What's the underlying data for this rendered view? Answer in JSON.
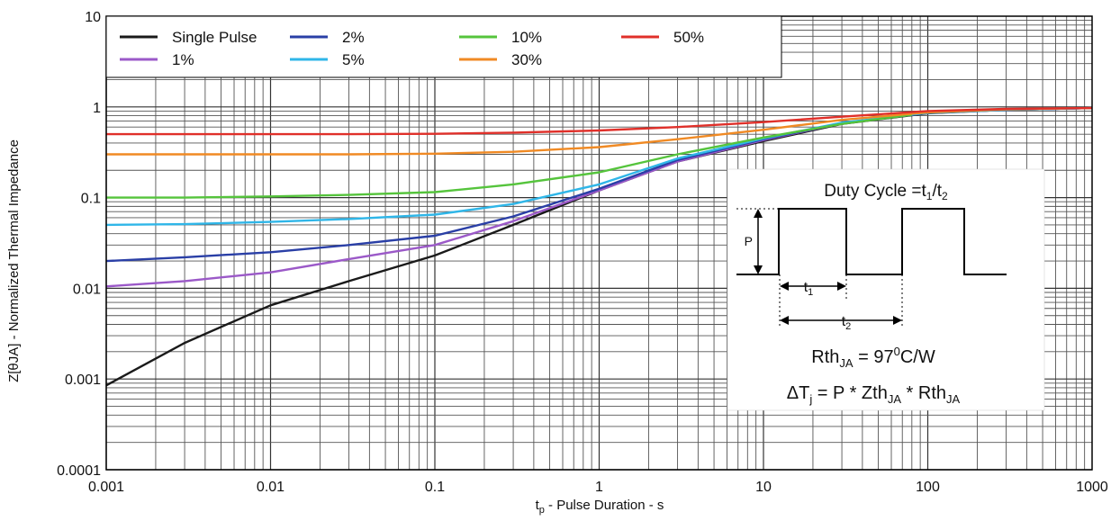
{
  "chart_data": {
    "type": "line",
    "title": "",
    "xlabel": {
      "main": "t",
      "sub": "p",
      "rest": " - Pulse Duration - s"
    },
    "ylabel": "Z[θJA] - Normalized Thermal Impedance",
    "xscale": "log",
    "yscale": "log",
    "xlim": [
      0.001,
      1000
    ],
    "ylim": [
      0.0001,
      10
    ],
    "grid": true,
    "legend_position": "top-left",
    "x_tick_labels": [
      "0.001",
      "0.01",
      "0.1",
      "1",
      "10",
      "100",
      "1000"
    ],
    "y_tick_labels": [
      "0.0001",
      "0.001",
      "0.01",
      "0.1",
      "1",
      "10"
    ],
    "series": [
      {
        "name": "Single Pulse",
        "color": "#1a1a1a",
        "x": [
          0.001,
          0.003,
          0.01,
          0.03,
          0.1,
          0.3,
          1,
          3,
          10,
          30,
          100,
          300,
          1000
        ],
        "y": [
          0.00085,
          0.0025,
          0.0065,
          0.012,
          0.023,
          0.05,
          0.12,
          0.25,
          0.42,
          0.65,
          0.85,
          0.93,
          0.97
        ]
      },
      {
        "name": "1%",
        "color": "#9b59c8",
        "x": [
          0.001,
          0.003,
          0.01,
          0.03,
          0.1,
          0.3,
          1,
          3,
          10,
          30,
          100,
          300,
          1000
        ],
        "y": [
          0.0105,
          0.012,
          0.015,
          0.021,
          0.03,
          0.055,
          0.12,
          0.25,
          0.43,
          0.66,
          0.86,
          0.93,
          0.97
        ]
      },
      {
        "name": "2%",
        "color": "#2a3fa6",
        "x": [
          0.001,
          0.003,
          0.01,
          0.03,
          0.1,
          0.3,
          1,
          3,
          10,
          30,
          100,
          300,
          1000
        ],
        "y": [
          0.02,
          0.022,
          0.025,
          0.03,
          0.038,
          0.062,
          0.125,
          0.26,
          0.44,
          0.66,
          0.86,
          0.93,
          0.97
        ]
      },
      {
        "name": "5%",
        "color": "#2fb6e8",
        "x": [
          0.001,
          0.003,
          0.01,
          0.03,
          0.1,
          0.3,
          1,
          3,
          10,
          30,
          100,
          300,
          1000
        ],
        "y": [
          0.05,
          0.051,
          0.054,
          0.058,
          0.065,
          0.085,
          0.14,
          0.27,
          0.45,
          0.67,
          0.86,
          0.93,
          0.97
        ]
      },
      {
        "name": "10%",
        "color": "#55c43c",
        "x": [
          0.001,
          0.003,
          0.01,
          0.03,
          0.1,
          0.3,
          1,
          3,
          10,
          30,
          80
        ],
        "y": [
          0.1,
          0.1,
          0.103,
          0.107,
          0.115,
          0.14,
          0.19,
          0.3,
          0.46,
          0.65,
          0.82
        ]
      },
      {
        "name": "30%",
        "color": "#f08a24",
        "x": [
          0.001,
          0.003,
          0.01,
          0.03,
          0.1,
          0.3,
          1,
          3,
          10,
          30,
          100,
          300,
          1000
        ],
        "y": [
          0.3,
          0.3,
          0.3,
          0.3,
          0.305,
          0.32,
          0.36,
          0.44,
          0.56,
          0.72,
          0.87,
          0.94,
          0.97
        ]
      },
      {
        "name": "50%",
        "color": "#e0302a",
        "x": [
          0.001,
          0.003,
          0.01,
          0.03,
          0.1,
          0.3,
          1,
          3,
          10,
          30,
          100,
          300,
          1000
        ],
        "y": [
          0.5,
          0.5,
          0.5,
          0.5,
          0.505,
          0.52,
          0.55,
          0.6,
          0.68,
          0.78,
          0.9,
          0.95,
          0.97
        ]
      }
    ]
  },
  "inset": {
    "duty_cycle": {
      "text": "Duty Cycle =t",
      "s1": "1",
      "mid": "/t",
      "s2": "2"
    },
    "p_label": "P",
    "t1": {
      "main": "t",
      "sub": "1"
    },
    "t2": {
      "main": "t",
      "sub": "2"
    },
    "rth": {
      "main": "Rth",
      "sub": "JA",
      "eq": " = 97",
      "sup": "0",
      "unit": "C/W"
    },
    "delta": {
      "main": "ΔT",
      "sub1": "j",
      "mid": " = P * Zth",
      "sub2": "JA",
      "mid2": " * Rth",
      "sub3": "JA"
    }
  }
}
